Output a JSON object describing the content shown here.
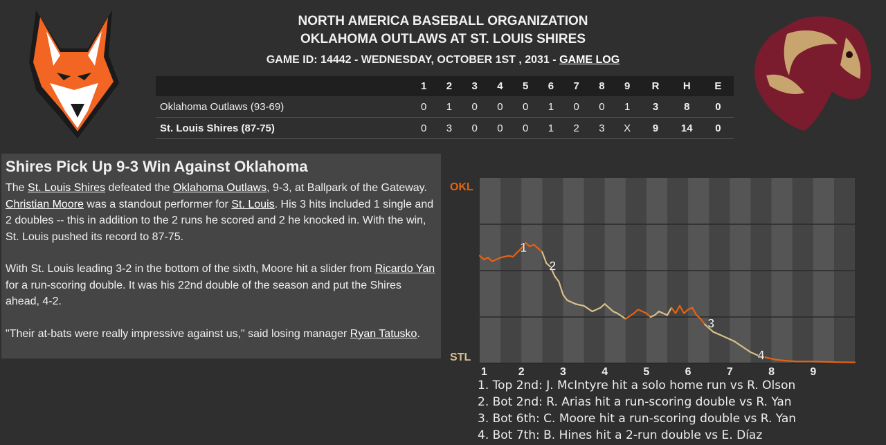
{
  "header": {
    "org": "NORTH AMERICA BASEBALL ORGANIZATION",
    "matchup": "OKLAHOMA OUTLAWS AT ST. LOUIS SHIRES",
    "game_info_prefix": "GAME ID: 14442 - WEDNESDAY, OCTOBER 1ST , 2031 - ",
    "game_log_link": "GAME LOG"
  },
  "logos": {
    "away": "fox-logo-icon",
    "home": "horse-logo-icon",
    "away_color": "#f26522",
    "home_color": "#7b1c2e"
  },
  "linescore": {
    "columns": [
      "1",
      "2",
      "3",
      "4",
      "5",
      "6",
      "7",
      "8",
      "9",
      "R",
      "H",
      "E"
    ],
    "away": {
      "team": "Oklahoma Outlaws (93-69)",
      "innings": [
        "0",
        "1",
        "0",
        "0",
        "0",
        "1",
        "0",
        "0",
        "1"
      ],
      "R": "3",
      "H": "8",
      "E": "0"
    },
    "home": {
      "team": "St. Louis Shires (87-75)",
      "innings": [
        "0",
        "3",
        "0",
        "0",
        "0",
        "1",
        "2",
        "3",
        "X"
      ],
      "R": "9",
      "H": "14",
      "E": "0"
    }
  },
  "story": {
    "headline": "Shires Pick Up 9-3 Win Against Oklahoma",
    "p1": [
      {
        "t": "The "
      },
      {
        "t": "St. Louis Shires",
        "link": true
      },
      {
        "t": " defeated the "
      },
      {
        "t": "Oklahoma Outlaws",
        "link": true
      },
      {
        "t": ", 9-3, at Ballpark of the Gateway. "
      },
      {
        "t": "Christian Moore",
        "link": true
      },
      {
        "t": " was a standout performer for "
      },
      {
        "t": "St. Louis",
        "link": true
      },
      {
        "t": ". His 3 hits included 1 single and 2 doubles -- this in addition to the 2 runs he scored and 2 he knocked in. With the win, St. Louis pushed its record to 87-75."
      }
    ],
    "p2": [
      {
        "t": "With St. Louis leading 3-2 in the bottom of the sixth, Moore hit a slider from "
      },
      {
        "t": "Ricardo Yan",
        "link": true
      },
      {
        "t": " for a run-scoring double. It was his 22nd double of the season and put the Shires ahead, 4-2."
      }
    ],
    "p3": [
      {
        "t": "\"Their at-bats were really impressive against us,\" said losing manager "
      },
      {
        "t": "Ryan Tatusko",
        "link": true
      },
      {
        "t": "."
      }
    ]
  },
  "chart_data": {
    "type": "line",
    "top_label": "OKL",
    "bottom_label": "STL",
    "away_color": "#e8620f",
    "home_color": "#d9c08a",
    "innings": [
      "1",
      "2",
      "3",
      "4",
      "5",
      "6",
      "7",
      "8",
      "9"
    ],
    "ylim": [
      0,
      100
    ],
    "grid_lines": [
      25,
      50,
      75
    ],
    "series_points": [
      [
        0,
        58
      ],
      [
        0.1,
        56
      ],
      [
        0.2,
        57
      ],
      [
        0.3,
        55
      ],
      [
        0.5,
        57
      ],
      [
        0.7,
        58
      ],
      [
        0.8,
        57.5
      ],
      [
        1.0,
        62
      ],
      [
        1.1,
        65
      ],
      [
        1.2,
        63
      ],
      [
        1.3,
        64
      ],
      [
        1.4,
        62
      ],
      [
        1.5,
        60
      ],
      [
        1.6,
        54
      ],
      [
        1.7,
        52
      ],
      [
        1.8,
        47
      ],
      [
        1.9,
        44
      ],
      [
        2.0,
        37
      ],
      [
        2.1,
        34
      ],
      [
        2.3,
        32
      ],
      [
        2.5,
        31
      ],
      [
        2.7,
        28
      ],
      [
        2.9,
        30
      ],
      [
        3.0,
        32
      ],
      [
        3.1,
        30
      ],
      [
        3.2,
        28
      ],
      [
        3.3,
        27
      ],
      [
        3.5,
        24
      ],
      [
        3.7,
        27
      ],
      [
        3.8,
        29
      ],
      [
        4.0,
        27
      ],
      [
        4.1,
        25
      ],
      [
        4.2,
        26
      ],
      [
        4.3,
        28
      ],
      [
        4.5,
        26
      ],
      [
        4.6,
        30
      ],
      [
        4.7,
        27
      ],
      [
        4.8,
        31
      ],
      [
        4.9,
        27
      ],
      [
        5.0,
        29
      ],
      [
        5.1,
        30
      ],
      [
        5.2,
        26
      ],
      [
        5.3,
        24
      ],
      [
        5.4,
        21
      ],
      [
        5.6,
        17
      ],
      [
        5.8,
        15
      ],
      [
        6.0,
        13
      ],
      [
        6.1,
        12
      ],
      [
        6.3,
        9
      ],
      [
        6.5,
        6
      ],
      [
        6.7,
        4
      ],
      [
        6.9,
        3
      ],
      [
        7.1,
        2
      ],
      [
        7.3,
        1.5
      ],
      [
        7.6,
        1
      ],
      [
        7.8,
        1
      ],
      [
        8.0,
        1
      ],
      [
        8.3,
        0.8
      ],
      [
        8.6,
        0.6
      ],
      [
        9.0,
        0.5
      ]
    ],
    "series_color_by_half": [
      "top",
      "top",
      "top",
      "top",
      "top",
      "top",
      "top",
      "top",
      "top",
      "top",
      "top",
      "top",
      "top",
      "bottom",
      "bottom",
      "bottom",
      "bottom",
      "bottom",
      "bottom",
      "bottom",
      "bottom",
      "bottom",
      "bottom",
      "bottom",
      "bottom",
      "bottom",
      "bottom",
      "bottom",
      "top",
      "top",
      "top",
      "top",
      "bottom",
      "bottom",
      "bottom",
      "bottom",
      "top",
      "top",
      "top",
      "top",
      "top",
      "top",
      "top",
      "top",
      "bottom",
      "bottom",
      "bottom",
      "bottom",
      "bottom",
      "bottom",
      "bottom",
      "top",
      "top",
      "top",
      "top",
      "top",
      "top",
      "top",
      "top",
      "top"
    ],
    "markers": [
      {
        "label": "1",
        "x": 0.9,
        "y": 62
      },
      {
        "label": "2",
        "x": 1.6,
        "y": 52
      },
      {
        "label": "3",
        "x": 5.4,
        "y": 21
      },
      {
        "label": "4",
        "x": 6.6,
        "y": 4
      }
    ],
    "key_plays": [
      "1. Top 2nd: J. McIntyre hit a solo home run vs R. Olson",
      "2. Bot 2nd: R. Arias hit a run-scoring double vs R. Yan",
      "3. Bot 6th: C. Moore hit a run-scoring double vs R. Yan",
      "4. Bot 7th: B. Hines hit a 2-run double vs E. Díaz"
    ]
  }
}
